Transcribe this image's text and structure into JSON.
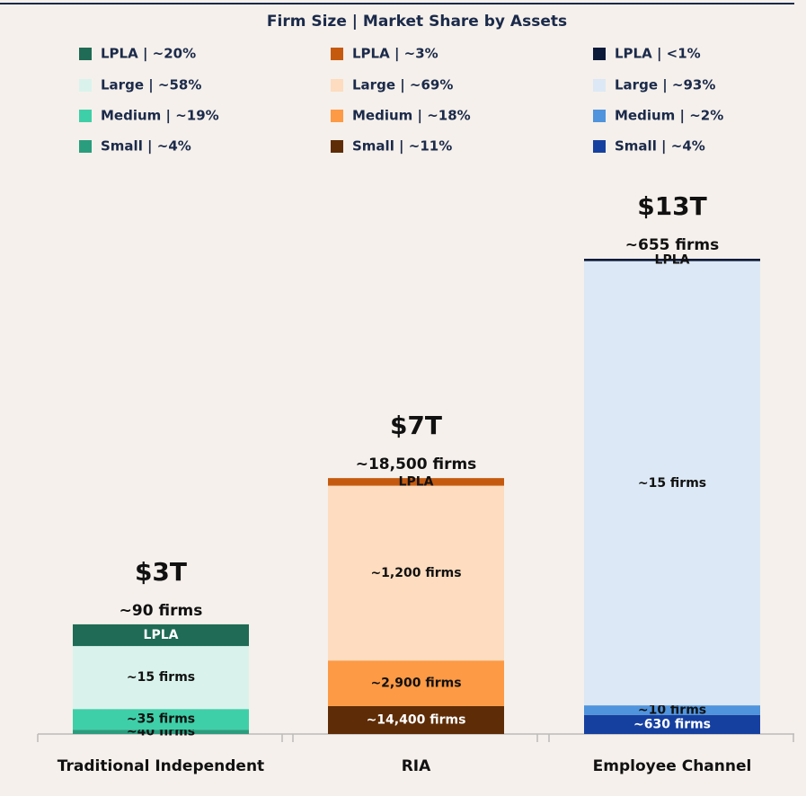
{
  "chart_data": {
    "type": "stacked-bar",
    "title": "Firm Size | Market Share by Assets",
    "groups": [
      {
        "category": "Traditional Independent",
        "total": 3,
        "total_label": "$3T",
        "firms_label": "~90 firms",
        "segments": [
          {
            "legend": "LPLA | ~20%",
            "share": 20,
            "label": "LPLA",
            "color": "#1f6b55",
            "text_color": "#ffffff"
          },
          {
            "legend": "Large | ~58%",
            "share": 58,
            "label": "~15 firms",
            "color": "#d9f3ec",
            "text_color": "#111111"
          },
          {
            "legend": "Medium | ~19%",
            "share": 19,
            "label": "~35 firms",
            "color": "#3fcfa8",
            "text_color": "#111111"
          },
          {
            "legend": "Small | ~4%",
            "share": 4,
            "label": "~40 firms",
            "color": "#2a9d7e",
            "text_color": "#111111"
          }
        ]
      },
      {
        "category": "RIA",
        "total": 7,
        "total_label": "$7T",
        "firms_label": "~18,500 firms",
        "segments": [
          {
            "legend": "LPLA | ~3%",
            "share": 3,
            "label": "LPLA",
            "color": "#c55a0f",
            "text_color": "#111111"
          },
          {
            "legend": "Large | ~69%",
            "share": 69,
            "label": "~1,200 firms",
            "color": "#fddcbf",
            "text_color": "#111111"
          },
          {
            "legend": "Medium | ~18%",
            "share": 18,
            "label": "~2,900 firms",
            "color": "#fd9a45",
            "text_color": "#111111"
          },
          {
            "legend": "Small | ~11%",
            "share": 11,
            "label": "~14,400 firms",
            "color": "#5e2c06",
            "text_color": "#ffffff"
          }
        ]
      },
      {
        "category": "Employee Channel",
        "total": 13,
        "total_label": "$13T",
        "firms_label": "~655 firms",
        "segments": [
          {
            "legend": "LPLA | <1%",
            "share": 0.5,
            "label": "LPLA",
            "color": "#0c1a3a",
            "text_color": "#111111"
          },
          {
            "legend": "Large | ~93%",
            "share": 93,
            "label": "~15 firms",
            "color": "#dce8f5",
            "text_color": "#111111"
          },
          {
            "legend": "Medium | ~2%",
            "share": 2,
            "label": "~10 firms",
            "color": "#4f94dd",
            "text_color": "#111111"
          },
          {
            "legend": "Small | ~4%",
            "share": 4,
            "label": "~630 firms",
            "color": "#1640a0",
            "text_color": "#ffffff"
          }
        ]
      }
    ]
  }
}
